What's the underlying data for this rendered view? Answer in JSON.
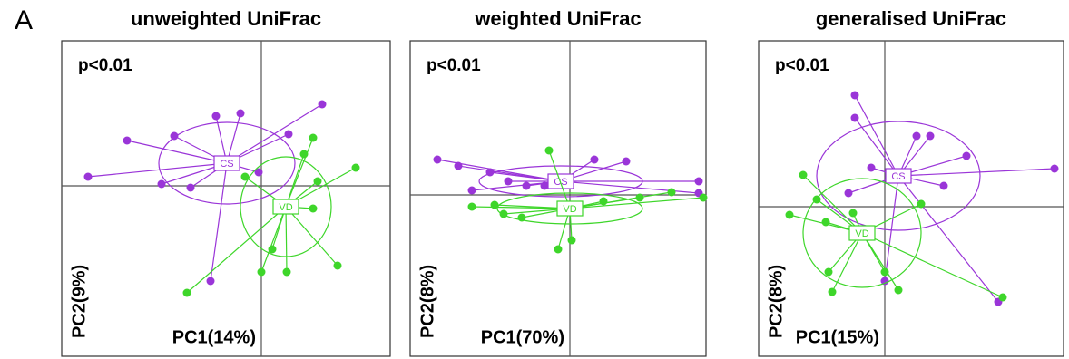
{
  "panel_label": "A",
  "chart_data": [
    {
      "type": "scatter",
      "title": "unweighted UniFrac",
      "annotation": "p<0.01",
      "xlabel": "PC1(14%)",
      "ylabel": "PC2(9%)",
      "xlim": [
        -2.2,
        1.42
      ],
      "ylim": [
        -1.88,
        1.6
      ],
      "series": [
        {
          "name": "CS",
          "color": "#9a35d8",
          "centroid": [
            -0.38,
            0.25
          ],
          "ellipse": [
            0.75,
            0.45
          ],
          "x": [
            -0.23,
            -0.5,
            -1.48,
            -1.91,
            -1.1,
            -0.78,
            0.3,
            0.67,
            -0.56,
            -0.96,
            -0.03
          ],
          "y": [
            0.8,
            0.77,
            0.5,
            0.1,
            0.02,
            -0.02,
            0.57,
            0.9,
            -1.05,
            0.55,
            0.15
          ]
        },
        {
          "name": "VD",
          "color": "#3ed62a",
          "centroid": [
            0.27,
            -0.23
          ],
          "ellipse": [
            0.5,
            0.55
          ],
          "x": [
            0.57,
            1.04,
            0.62,
            0.57,
            0.84,
            0.28,
            0,
            -0.82,
            0.12,
            0.47,
            -0.18
          ],
          "y": [
            0.53,
            0.2,
            0.05,
            -0.25,
            -0.88,
            -0.95,
            -0.95,
            -1.18,
            -0.7,
            0.35,
            0.1
          ]
        }
      ]
    },
    {
      "type": "scatter",
      "title": "weighted UniFrac",
      "annotation": "p<0.01",
      "xlabel": "PC1(70%)",
      "ylabel": "PC2(8%)",
      "xlim": [
        -1.76,
        1.5
      ],
      "ylim": [
        -1.78,
        1.7
      ],
      "series": [
        {
          "name": "CS",
          "color": "#9a35d8",
          "centroid": [
            -0.1,
            0.15
          ],
          "ellipse": [
            0.9,
            0.17
          ],
          "x": [
            -1.46,
            -1.23,
            -0.88,
            -0.68,
            -0.48,
            0.27,
            0.62,
            1.42,
            1.42,
            -1.08,
            -0.28
          ],
          "y": [
            0.39,
            0.32,
            0.25,
            0.15,
            0.1,
            0.39,
            0.37,
            0.15,
            0.02,
            0.05,
            0.1
          ]
        },
        {
          "name": "VD",
          "color": "#3ed62a",
          "centroid": [
            0,
            -0.15
          ],
          "ellipse": [
            0.8,
            0.17
          ],
          "x": [
            -0.23,
            -1.08,
            -0.83,
            -0.73,
            -0.13,
            0.02,
            0.37,
            0.77,
            1.47,
            1.12,
            -0.53
          ],
          "y": [
            0.49,
            -0.13,
            -0.11,
            -0.21,
            -0.6,
            -0.5,
            -0.07,
            -0.03,
            -0.03,
            0.03,
            -0.25
          ]
        }
      ]
    },
    {
      "type": "scatter",
      "title": "generalised UniFrac",
      "annotation": "p<0.01",
      "xlabel": "PC1(15%)",
      "ylabel": "PC2(8%)",
      "xlim": [
        -1.39,
        1.97
      ],
      "ylim": [
        -1.65,
        1.83
      ],
      "series": [
        {
          "name": "CS",
          "color": "#9a35d8",
          "centroid": [
            0.15,
            0.34
          ],
          "ellipse": [
            0.9,
            0.6
          ],
          "x": [
            -0.33,
            -0.33,
            0.35,
            0.5,
            0.9,
            1.87,
            1.25,
            -0.15,
            -0.4,
            0.65,
            0
          ],
          "y": [
            1.23,
            0.98,
            0.78,
            0.78,
            0.56,
            0.42,
            -1.05,
            0.43,
            0.15,
            0.23,
            -0.82
          ]
        },
        {
          "name": "VD",
          "color": "#3ed62a",
          "centroid": [
            -0.25,
            -0.29
          ],
          "ellipse": [
            0.65,
            0.6
          ],
          "x": [
            -0.9,
            -1.05,
            -0.75,
            -0.65,
            -0.62,
            -0.58,
            0,
            0.15,
            0.4,
            1.3,
            -0.35
          ],
          "y": [
            0.35,
            -0.09,
            0.08,
            -0.17,
            -0.72,
            -0.94,
            -0.72,
            -0.92,
            0.03,
            -1.0,
            -0.07
          ]
        }
      ]
    }
  ]
}
